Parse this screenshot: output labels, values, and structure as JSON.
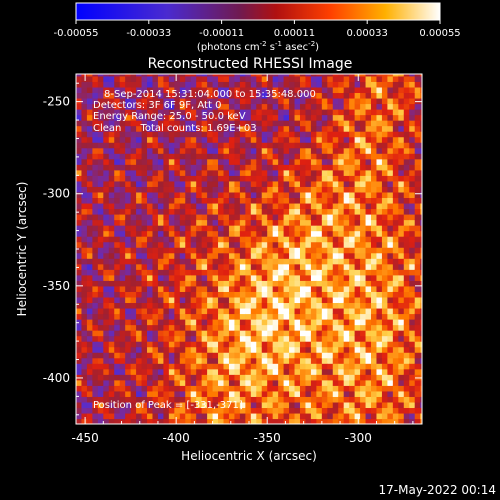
{
  "chart_data": {
    "type": "heatmap",
    "title": "Reconstructed RHESSI Image",
    "xlabel": "Heliocentric X (arcsec)",
    "ylabel": "Heliocentric Y (arcsec)",
    "xlim": [
      -455,
      -265
    ],
    "ylim": [
      -425,
      -235
    ],
    "x_ticks": [
      -450,
      -400,
      -350,
      -300
    ],
    "x_tick_labels": [
      "-450",
      "-400",
      "-350",
      "-300"
    ],
    "y_ticks": [
      -400,
      -350,
      -300,
      -250
    ],
    "y_tick_labels": [
      "-400",
      "-350",
      "-300",
      "-250"
    ],
    "colorbar": {
      "range": [
        -0.00055,
        0.00055
      ],
      "ticks": [
        -0.00055,
        -0.00033,
        -0.00011,
        0.00011,
        0.00033,
        0.00055
      ],
      "tick_labels": [
        "-0.00055",
        "-0.00033",
        "-0.00011",
        "0.00011",
        "0.00033",
        "0.00055"
      ],
      "label_main": "(photons cm",
      "label_exp1": "-2",
      "label_mid": " s",
      "label_exp2": "-1",
      "label_mid2": " asec",
      "label_exp3": "-2",
      "label_end": ")"
    },
    "annotations": [
      "8-Sep-2014 15:31:04.000 to 15:35:48.000",
      "Detectors: 3F 6F 9F, Att 0",
      "Energy Range: 25.0 - 50.0 keV",
      "Clean      Total counts: 1.69E+03"
    ],
    "peak_label": "Position of Peak = [-331,-371]",
    "peak": [
      -331,
      -371
    ],
    "grid": false,
    "colormap": [
      "#000000",
      "#2020ff",
      "#5a2dc8",
      "#7a2a9a",
      "#a02030",
      "#e02010",
      "#ff7a00",
      "#ffd24a",
      "#ffffff"
    ]
  },
  "timestamp": "17-May-2022 00:14"
}
